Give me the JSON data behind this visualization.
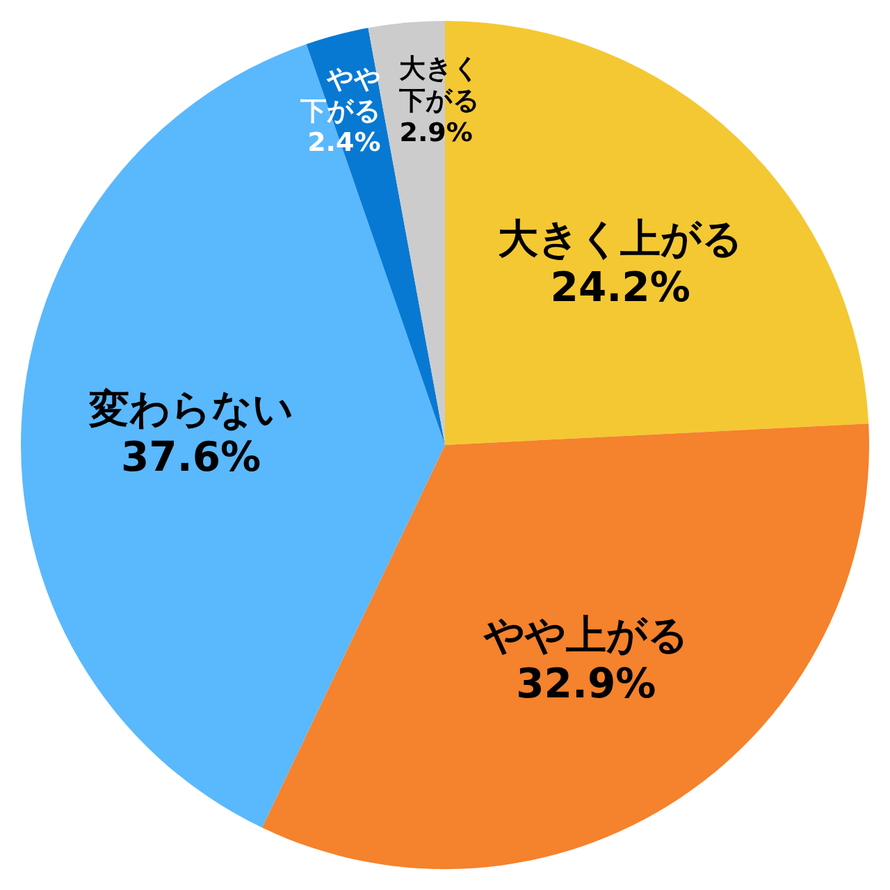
{
  "chart_data": {
    "type": "pie",
    "categories": [
      "大きく上がる",
      "やや上がる",
      "変わらない",
      "やや下がる",
      "大きく下がる"
    ],
    "values": [
      24.2,
      32.9,
      37.6,
      2.4,
      2.9
    ],
    "colors": [
      "#f4c832",
      "#f5822c",
      "#5ab8fd",
      "#0779d3",
      "#cccccc"
    ],
    "value_labels": [
      "24.2%",
      "32.9%",
      "37.6%",
      "2.4%",
      "2.9%"
    ]
  }
}
